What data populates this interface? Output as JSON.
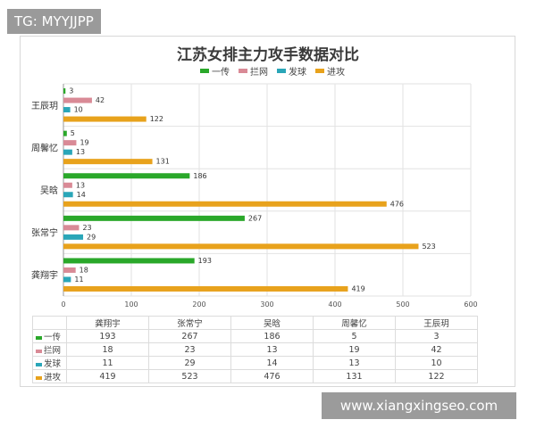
{
  "tag": "TG: MYYJJPP",
  "watermark": "www.xiangxingseo.com",
  "chart_data": {
    "type": "bar",
    "orientation": "horizontal",
    "title": "江苏女排主力攻手数据对比",
    "categories": [
      "王辰玥",
      "周馨忆",
      "吴晗",
      "张常宁",
      "龚翔宇"
    ],
    "series": [
      {
        "name": "一传",
        "color": "#2aa82a",
        "values": [
          3,
          5,
          186,
          267,
          193
        ]
      },
      {
        "name": "拦网",
        "color": "#d98a96",
        "values": [
          42,
          19,
          13,
          23,
          18
        ]
      },
      {
        "name": "发球",
        "color": "#2aa6b8",
        "values": [
          10,
          13,
          14,
          29,
          11
        ]
      },
      {
        "name": "进攻",
        "color": "#e8a21c",
        "values": [
          122,
          131,
          476,
          523,
          419
        ]
      }
    ],
    "xlim": [
      0,
      600
    ],
    "xticks": [
      0,
      100,
      200,
      300,
      400,
      500,
      600
    ],
    "grid": true,
    "legend_position": "top",
    "data_labels": true,
    "table": {
      "columns": [
        "龚翔宇",
        "张常宁",
        "吴晗",
        "周馨忆",
        "王辰玥"
      ],
      "rows": [
        {
          "label": "一传",
          "values": [
            "193",
            "267",
            "186",
            "5",
            "3"
          ]
        },
        {
          "label": "拦网",
          "values": [
            "18",
            "23",
            "13",
            "19",
            "42"
          ]
        },
        {
          "label": "发球",
          "values": [
            "11",
            "29",
            "14",
            "13",
            "10"
          ]
        },
        {
          "label": "进攻",
          "values": [
            "419",
            "523",
            "476",
            "131",
            "122"
          ]
        }
      ]
    }
  }
}
